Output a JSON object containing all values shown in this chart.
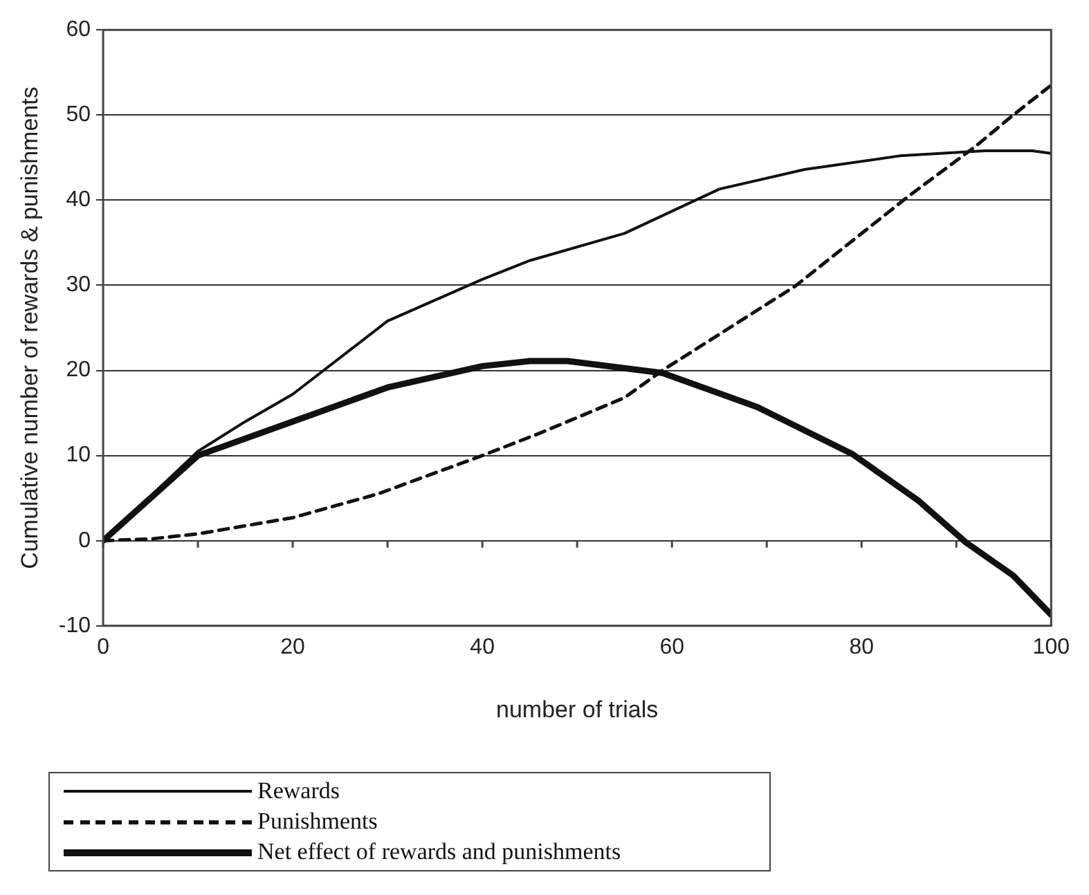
{
  "chart_data": {
    "type": "line",
    "xlabel": "number of trials",
    "ylabel": "Cumulative number of rewards & punishments",
    "xlim": [
      0,
      100
    ],
    "ylim": [
      -10,
      60
    ],
    "xticks": [
      0,
      {
        "value": 10,
        "label": null
      },
      20,
      {
        "value": 30,
        "label": null
      },
      40,
      {
        "value": 50,
        "label": null
      },
      60,
      {
        "value": 70,
        "label": null
      },
      80,
      {
        "value": 90,
        "label": null
      },
      100
    ],
    "yticks": [
      -10,
      0,
      10,
      20,
      30,
      40,
      50,
      60
    ],
    "grid": "y",
    "legend": "bottom",
    "marker": "none",
    "series": [
      {
        "name": "Rewards",
        "color": "#111111",
        "line_style": "solid",
        "x": [
          0,
          5,
          10,
          15,
          20,
          30,
          40,
          45,
          55,
          65,
          74,
          84,
          93,
          98,
          100
        ],
        "values": [
          0,
          5.2,
          10.5,
          14,
          17.2,
          25.8,
          30.7,
          32.9,
          36.1,
          41.3,
          43.6,
          45.2,
          45.8,
          45.8,
          45.5
        ]
      },
      {
        "name": "Punishments",
        "color": "#111111",
        "line_style": "dashed",
        "x": [
          0,
          5,
          10,
          20,
          29,
          40,
          46,
          55,
          59,
          73,
          85,
          92,
          96,
          100
        ],
        "values": [
          0,
          0.2,
          0.8,
          2.7,
          5.5,
          10,
          12.6,
          16.8,
          20,
          29.9,
          40.5,
          46.3,
          50,
          53.5
        ]
      },
      {
        "name": "Net effect of rewards and punishments",
        "color": "#111111",
        "line_style": "solid",
        "x": [
          0,
          5,
          10,
          20,
          30,
          40,
          45,
          49,
          59,
          69,
          79,
          86,
          91,
          96,
          100
        ],
        "values": [
          0,
          5,
          10,
          14,
          18,
          20.5,
          21.1,
          21.1,
          19.7,
          15.7,
          10.2,
          4.7,
          -0.2,
          -4.1,
          -8.7
        ]
      }
    ]
  }
}
